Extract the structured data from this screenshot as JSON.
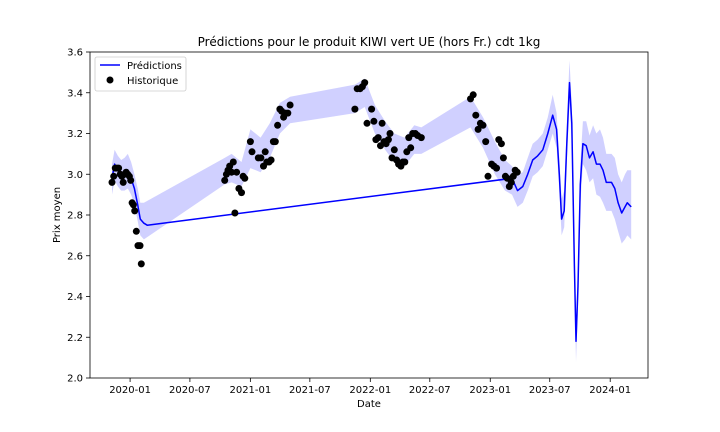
{
  "chart_data": {
    "type": "line",
    "title": "Prédictions pour le produit KIWI vert UE (hors Fr.) cdt 1kg",
    "xlabel": "Date",
    "ylabel": "Prix moyen",
    "xlim": [
      "2019-09-01",
      "2024-04-25"
    ],
    "ylim": [
      2.0,
      3.6
    ],
    "x_ticks": [
      "2020-01-01",
      "2020-07-01",
      "2021-01-01",
      "2021-07-01",
      "2022-01-01",
      "2022-07-01",
      "2023-01-01",
      "2023-07-01",
      "2024-01-01"
    ],
    "x_tick_labels": [
      "2020-01",
      "2020-07",
      "2021-01",
      "2021-07",
      "2022-01",
      "2022-07",
      "2023-01",
      "2023-07",
      "2024-01"
    ],
    "y_ticks": [
      2.0,
      2.2,
      2.4,
      2.6,
      2.8,
      3.0,
      3.2,
      3.4,
      3.6
    ],
    "y_tick_labels": [
      "2.0",
      "2.2",
      "2.4",
      "2.6",
      "2.8",
      "3.0",
      "3.2",
      "3.4",
      "3.6"
    ],
    "grid": false,
    "legend_position": "top-left",
    "colors": {
      "prediction": "#0000ff",
      "band": "#c8c8ff",
      "history": "#000000"
    },
    "series": [
      {
        "name": "Prédictions",
        "kind": "line",
        "points": [
          [
            "2019-11-07",
            2.98
          ],
          [
            "2019-11-15",
            3.05
          ],
          [
            "2019-11-25",
            3.02
          ],
          [
            "2019-12-05",
            2.99
          ],
          [
            "2019-12-15",
            3.0
          ],
          [
            "2019-12-25",
            3.02
          ],
          [
            "2020-01-04",
            2.98
          ],
          [
            "2020-01-14",
            2.93
          ],
          [
            "2020-01-24",
            2.85
          ],
          [
            "2020-02-01",
            2.78
          ],
          [
            "2020-02-12",
            2.76
          ],
          [
            "2020-02-22",
            2.75
          ],
          [
            "2023-03-08",
            2.98
          ],
          [
            "2023-03-25",
            2.92
          ],
          [
            "2023-04-10",
            2.94
          ],
          [
            "2023-04-25",
            3.0
          ],
          [
            "2023-05-10",
            3.07
          ],
          [
            "2023-05-25",
            3.09
          ],
          [
            "2023-06-10",
            3.12
          ],
          [
            "2023-06-25",
            3.2
          ],
          [
            "2023-07-10",
            3.29
          ],
          [
            "2023-07-22",
            3.22
          ],
          [
            "2023-07-30",
            3.0
          ],
          [
            "2023-08-06",
            2.78
          ],
          [
            "2023-08-14",
            2.82
          ],
          [
            "2023-08-22",
            3.15
          ],
          [
            "2023-08-30",
            3.45
          ],
          [
            "2023-09-06",
            3.25
          ],
          [
            "2023-09-14",
            2.55
          ],
          [
            "2023-09-19",
            2.18
          ],
          [
            "2023-09-25",
            2.45
          ],
          [
            "2023-10-02",
            2.95
          ],
          [
            "2023-10-10",
            3.15
          ],
          [
            "2023-10-20",
            3.14
          ],
          [
            "2023-10-30",
            3.08
          ],
          [
            "2023-11-10",
            3.11
          ],
          [
            "2023-11-20",
            3.05
          ],
          [
            "2023-12-01",
            3.05
          ],
          [
            "2023-12-10",
            3.02
          ],
          [
            "2023-12-20",
            2.96
          ],
          [
            "2024-01-05",
            2.96
          ],
          [
            "2024-01-15",
            2.93
          ],
          [
            "2024-01-25",
            2.86
          ],
          [
            "2024-02-05",
            2.81
          ],
          [
            "2024-02-15",
            2.84
          ],
          [
            "2024-02-22",
            2.86
          ],
          [
            "2024-03-05",
            2.84
          ]
        ]
      },
      {
        "name": "Historique",
        "kind": "scatter",
        "points": [
          [
            "2019-11-07",
            2.96
          ],
          [
            "2019-11-12",
            2.99
          ],
          [
            "2019-11-17",
            3.03
          ],
          [
            "2019-11-22",
            3.03
          ],
          [
            "2019-11-27",
            3.03
          ],
          [
            "2019-12-02",
            3.0
          ],
          [
            "2019-12-07",
            2.99
          ],
          [
            "2019-12-11",
            2.96
          ],
          [
            "2019-12-15",
            3.0
          ],
          [
            "2019-12-20",
            3.01
          ],
          [
            "2019-12-25",
            3.0
          ],
          [
            "2019-12-30",
            2.99
          ],
          [
            "2020-01-03",
            2.97
          ],
          [
            "2020-01-07",
            2.86
          ],
          [
            "2020-01-11",
            2.85
          ],
          [
            "2020-01-15",
            2.82
          ],
          [
            "2020-01-20",
            2.72
          ],
          [
            "2020-01-25",
            2.65
          ],
          [
            "2020-01-31",
            2.65
          ],
          [
            "2020-02-04",
            2.56
          ],
          [
            "2020-10-15",
            2.97
          ],
          [
            "2020-10-20",
            3.0
          ],
          [
            "2020-10-25",
            3.02
          ],
          [
            "2020-10-30",
            3.04
          ],
          [
            "2020-11-05",
            3.01
          ],
          [
            "2020-11-10",
            3.06
          ],
          [
            "2020-11-15",
            2.81
          ],
          [
            "2020-11-20",
            3.01
          ],
          [
            "2020-11-27",
            2.93
          ],
          [
            "2020-12-05",
            2.91
          ],
          [
            "2020-12-10",
            2.99
          ],
          [
            "2020-12-15",
            2.98
          ],
          [
            "2021-01-01",
            3.16
          ],
          [
            "2021-01-06",
            3.11
          ],
          [
            "2021-01-25",
            3.08
          ],
          [
            "2021-02-02",
            3.08
          ],
          [
            "2021-02-10",
            3.04
          ],
          [
            "2021-02-15",
            3.11
          ],
          [
            "2021-02-20",
            3.06
          ],
          [
            "2021-02-27",
            3.06
          ],
          [
            "2021-03-05",
            3.07
          ],
          [
            "2021-03-12",
            3.16
          ],
          [
            "2021-03-18",
            3.16
          ],
          [
            "2021-03-25",
            3.24
          ],
          [
            "2021-04-01",
            3.32
          ],
          [
            "2021-04-06",
            3.31
          ],
          [
            "2021-04-12",
            3.28
          ],
          [
            "2021-04-18",
            3.3
          ],
          [
            "2021-04-25",
            3.3
          ],
          [
            "2021-05-02",
            3.34
          ],
          [
            "2021-11-15",
            3.32
          ],
          [
            "2021-11-22",
            3.42
          ],
          [
            "2021-12-01",
            3.42
          ],
          [
            "2021-12-08",
            3.43
          ],
          [
            "2021-12-15",
            3.45
          ],
          [
            "2021-12-22",
            3.25
          ],
          [
            "2022-01-05",
            3.32
          ],
          [
            "2022-01-12",
            3.26
          ],
          [
            "2022-01-18",
            3.17
          ],
          [
            "2022-01-25",
            3.18
          ],
          [
            "2022-02-01",
            3.14
          ],
          [
            "2022-02-06",
            3.25
          ],
          [
            "2022-02-12",
            3.16
          ],
          [
            "2022-02-18",
            3.15
          ],
          [
            "2022-02-25",
            3.17
          ],
          [
            "2022-03-02",
            3.2
          ],
          [
            "2022-03-08",
            3.08
          ],
          [
            "2022-03-15",
            3.12
          ],
          [
            "2022-03-22",
            3.07
          ],
          [
            "2022-03-28",
            3.05
          ],
          [
            "2022-04-04",
            3.04
          ],
          [
            "2022-04-10",
            3.06
          ],
          [
            "2022-04-16",
            3.06
          ],
          [
            "2022-04-22",
            3.11
          ],
          [
            "2022-04-28",
            3.18
          ],
          [
            "2022-05-04",
            3.13
          ],
          [
            "2022-05-10",
            3.2
          ],
          [
            "2022-05-18",
            3.2
          ],
          [
            "2022-05-25",
            3.19
          ],
          [
            "2022-06-05",
            3.18
          ],
          [
            "2022-11-02",
            3.37
          ],
          [
            "2022-11-10",
            3.39
          ],
          [
            "2022-11-18",
            3.29
          ],
          [
            "2022-11-25",
            3.22
          ],
          [
            "2022-12-02",
            3.25
          ],
          [
            "2022-12-10",
            3.24
          ],
          [
            "2022-12-18",
            3.16
          ],
          [
            "2022-12-25",
            2.99
          ],
          [
            "2023-01-05",
            3.05
          ],
          [
            "2023-01-12",
            3.04
          ],
          [
            "2023-01-20",
            3.03
          ],
          [
            "2023-01-27",
            3.17
          ],
          [
            "2023-02-04",
            3.15
          ],
          [
            "2023-02-10",
            3.08
          ],
          [
            "2023-02-16",
            2.99
          ],
          [
            "2023-02-22",
            2.98
          ],
          [
            "2023-02-28",
            2.94
          ],
          [
            "2023-03-06",
            2.96
          ],
          [
            "2023-03-12",
            2.99
          ],
          [
            "2023-03-18",
            3.02
          ],
          [
            "2023-03-24",
            3.01
          ]
        ]
      }
    ],
    "band": {
      "upper": [
        [
          "2019-11-07",
          3.05
        ],
        [
          "2019-11-15",
          3.12
        ],
        [
          "2019-11-25",
          3.09
        ],
        [
          "2019-12-05",
          3.07
        ],
        [
          "2019-12-15",
          3.08
        ],
        [
          "2019-12-25",
          3.1
        ],
        [
          "2020-01-04",
          3.06
        ],
        [
          "2020-01-14",
          3.0
        ],
        [
          "2020-01-24",
          2.93
        ],
        [
          "2020-02-01",
          2.86
        ],
        [
          "2020-02-12",
          2.86
        ],
        [
          "2020-10-15",
          3.08
        ],
        [
          "2020-11-05",
          3.1
        ],
        [
          "2020-12-05",
          3.06
        ],
        [
          "2021-01-01",
          3.22
        ],
        [
          "2021-02-01",
          3.18
        ],
        [
          "2021-03-01",
          3.25
        ],
        [
          "2021-04-01",
          3.35
        ],
        [
          "2021-05-02",
          3.38
        ],
        [
          "2021-11-15",
          3.44
        ],
        [
          "2021-12-15",
          3.47
        ],
        [
          "2022-01-15",
          3.34
        ],
        [
          "2022-02-15",
          3.26
        ],
        [
          "2022-03-15",
          3.2
        ],
        [
          "2022-04-15",
          3.18
        ],
        [
          "2022-05-15",
          3.24
        ],
        [
          "2022-06-05",
          3.23
        ],
        [
          "2022-11-02",
          3.38
        ],
        [
          "2022-12-10",
          3.28
        ],
        [
          "2023-01-15",
          3.16
        ],
        [
          "2023-02-15",
          3.07
        ],
        [
          "2023-03-08",
          3.04
        ],
        [
          "2023-03-25",
          3.0
        ],
        [
          "2023-04-10",
          3.01
        ],
        [
          "2023-04-25",
          3.08
        ],
        [
          "2023-05-10",
          3.15
        ],
        [
          "2023-05-25",
          3.17
        ],
        [
          "2023-06-10",
          3.2
        ],
        [
          "2023-06-25",
          3.28
        ],
        [
          "2023-07-10",
          3.39
        ],
        [
          "2023-07-22",
          3.3
        ],
        [
          "2023-07-30",
          3.08
        ],
        [
          "2023-08-06",
          2.88
        ],
        [
          "2023-08-14",
          2.92
        ],
        [
          "2023-08-22",
          3.25
        ],
        [
          "2023-08-30",
          3.56
        ],
        [
          "2023-09-06",
          3.34
        ],
        [
          "2023-09-14",
          2.64
        ],
        [
          "2023-09-19",
          2.28
        ],
        [
          "2023-09-25",
          2.55
        ],
        [
          "2023-10-02",
          3.05
        ],
        [
          "2023-10-10",
          3.26
        ],
        [
          "2023-10-20",
          3.26
        ],
        [
          "2023-10-30",
          3.19
        ],
        [
          "2023-11-10",
          3.24
        ],
        [
          "2023-11-20",
          3.2
        ],
        [
          "2023-12-01",
          3.22
        ],
        [
          "2023-12-10",
          3.18
        ],
        [
          "2023-12-20",
          3.1
        ],
        [
          "2024-01-05",
          3.1
        ],
        [
          "2024-01-15",
          3.08
        ],
        [
          "2024-01-25",
          3.0
        ],
        [
          "2024-02-05",
          2.96
        ],
        [
          "2024-02-15",
          3.0
        ],
        [
          "2024-02-22",
          3.02
        ],
        [
          "2024-03-05",
          3.02
        ]
      ],
      "lower": [
        [
          "2019-11-07",
          2.9
        ],
        [
          "2019-11-15",
          2.97
        ],
        [
          "2019-11-25",
          2.94
        ],
        [
          "2019-12-05",
          2.92
        ],
        [
          "2019-12-15",
          2.92
        ],
        [
          "2019-12-25",
          2.93
        ],
        [
          "2020-01-04",
          2.9
        ],
        [
          "2020-01-14",
          2.85
        ],
        [
          "2020-01-24",
          2.77
        ],
        [
          "2020-02-01",
          2.7
        ],
        [
          "2020-02-12",
          2.68
        ],
        [
          "2020-10-15",
          2.95
        ],
        [
          "2020-11-05",
          2.96
        ],
        [
          "2020-12-05",
          2.94
        ],
        [
          "2021-01-01",
          3.03
        ],
        [
          "2021-02-01",
          3.01
        ],
        [
          "2021-03-01",
          3.08
        ],
        [
          "2021-04-01",
          3.2
        ],
        [
          "2021-05-02",
          3.25
        ],
        [
          "2021-11-15",
          3.3
        ],
        [
          "2021-12-15",
          3.33
        ],
        [
          "2022-01-15",
          3.2
        ],
        [
          "2022-02-15",
          3.12
        ],
        [
          "2022-03-15",
          3.06
        ],
        [
          "2022-04-15",
          3.04
        ],
        [
          "2022-05-15",
          3.1
        ],
        [
          "2022-06-05",
          3.1
        ],
        [
          "2022-11-02",
          3.23
        ],
        [
          "2022-12-10",
          3.13
        ],
        [
          "2023-01-15",
          3.0
        ],
        [
          "2023-02-15",
          2.92
        ],
        [
          "2023-03-08",
          2.9
        ],
        [
          "2023-03-25",
          2.84
        ],
        [
          "2023-04-10",
          2.86
        ],
        [
          "2023-04-25",
          2.92
        ],
        [
          "2023-05-10",
          2.99
        ],
        [
          "2023-05-25",
          3.01
        ],
        [
          "2023-06-10",
          3.04
        ],
        [
          "2023-06-25",
          3.12
        ],
        [
          "2023-07-10",
          3.2
        ],
        [
          "2023-07-22",
          3.13
        ],
        [
          "2023-07-30",
          2.92
        ],
        [
          "2023-08-06",
          2.7
        ],
        [
          "2023-08-14",
          2.74
        ],
        [
          "2023-08-22",
          3.06
        ],
        [
          "2023-08-30",
          3.35
        ],
        [
          "2023-09-06",
          3.15
        ],
        [
          "2023-09-14",
          2.46
        ],
        [
          "2023-09-19",
          2.08
        ],
        [
          "2023-09-25",
          2.35
        ],
        [
          "2023-10-02",
          2.85
        ],
        [
          "2023-10-10",
          3.05
        ],
        [
          "2023-10-20",
          3.02
        ],
        [
          "2023-10-30",
          2.96
        ],
        [
          "2023-11-10",
          2.98
        ],
        [
          "2023-11-20",
          2.9
        ],
        [
          "2023-12-01",
          2.89
        ],
        [
          "2023-12-10",
          2.86
        ],
        [
          "2023-12-20",
          2.82
        ],
        [
          "2024-01-05",
          2.82
        ],
        [
          "2024-01-15",
          2.78
        ],
        [
          "2024-01-25",
          2.72
        ],
        [
          "2024-02-05",
          2.66
        ],
        [
          "2024-02-15",
          2.68
        ],
        [
          "2024-02-22",
          2.7
        ],
        [
          "2024-03-05",
          2.68
        ]
      ]
    }
  }
}
